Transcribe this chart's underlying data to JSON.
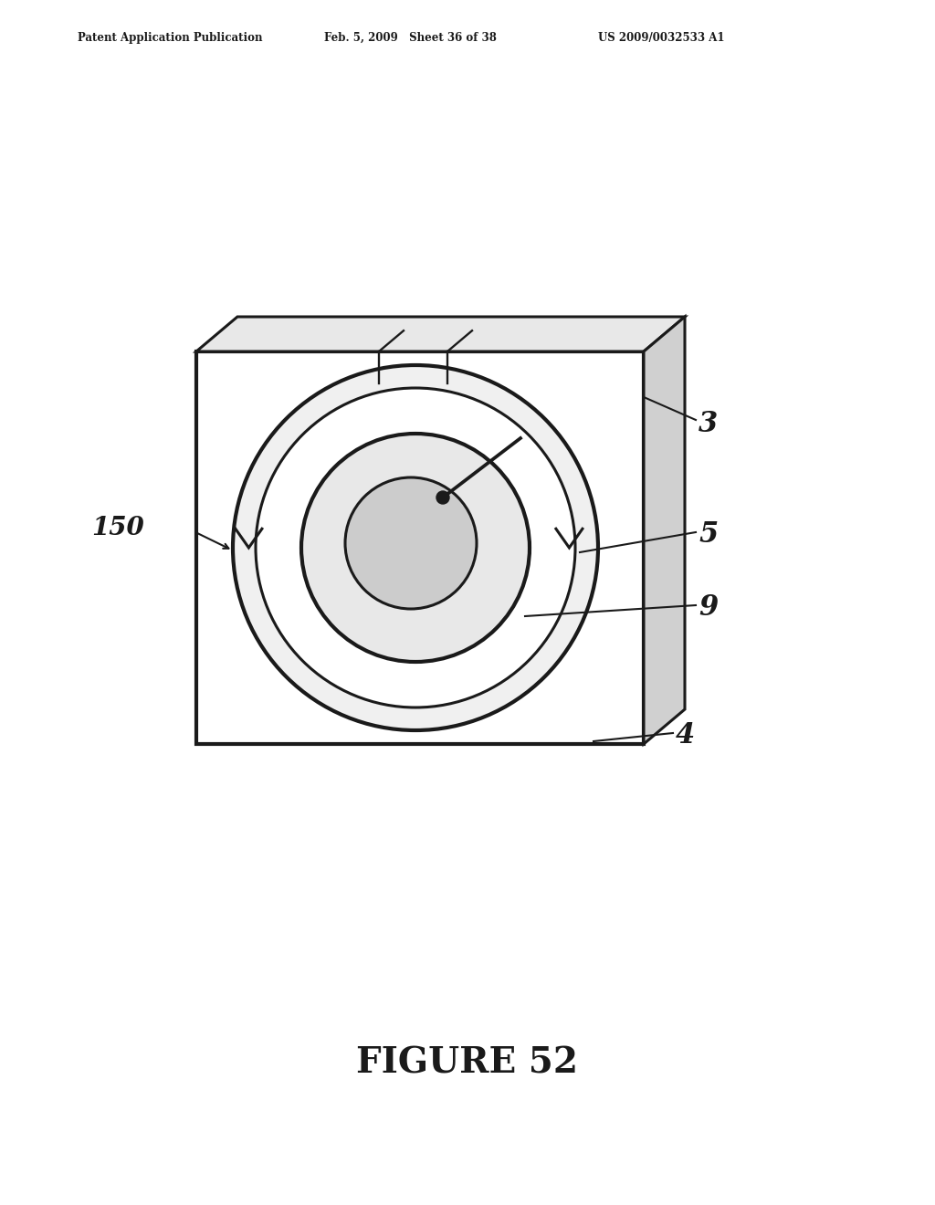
{
  "title": "FIGURE 52",
  "header_left": "Patent Application Publication",
  "header_center": "Feb. 5, 2009   Sheet 36 of 38",
  "header_right": "US 2009/0032533 A1",
  "bg_color": "#ffffff",
  "drawing_color": "#1a1a1a",
  "label_3": "3",
  "label_4": "4",
  "label_5": "5",
  "label_9": "9",
  "label_150": "150",
  "fig_title": "FIGURE 52"
}
